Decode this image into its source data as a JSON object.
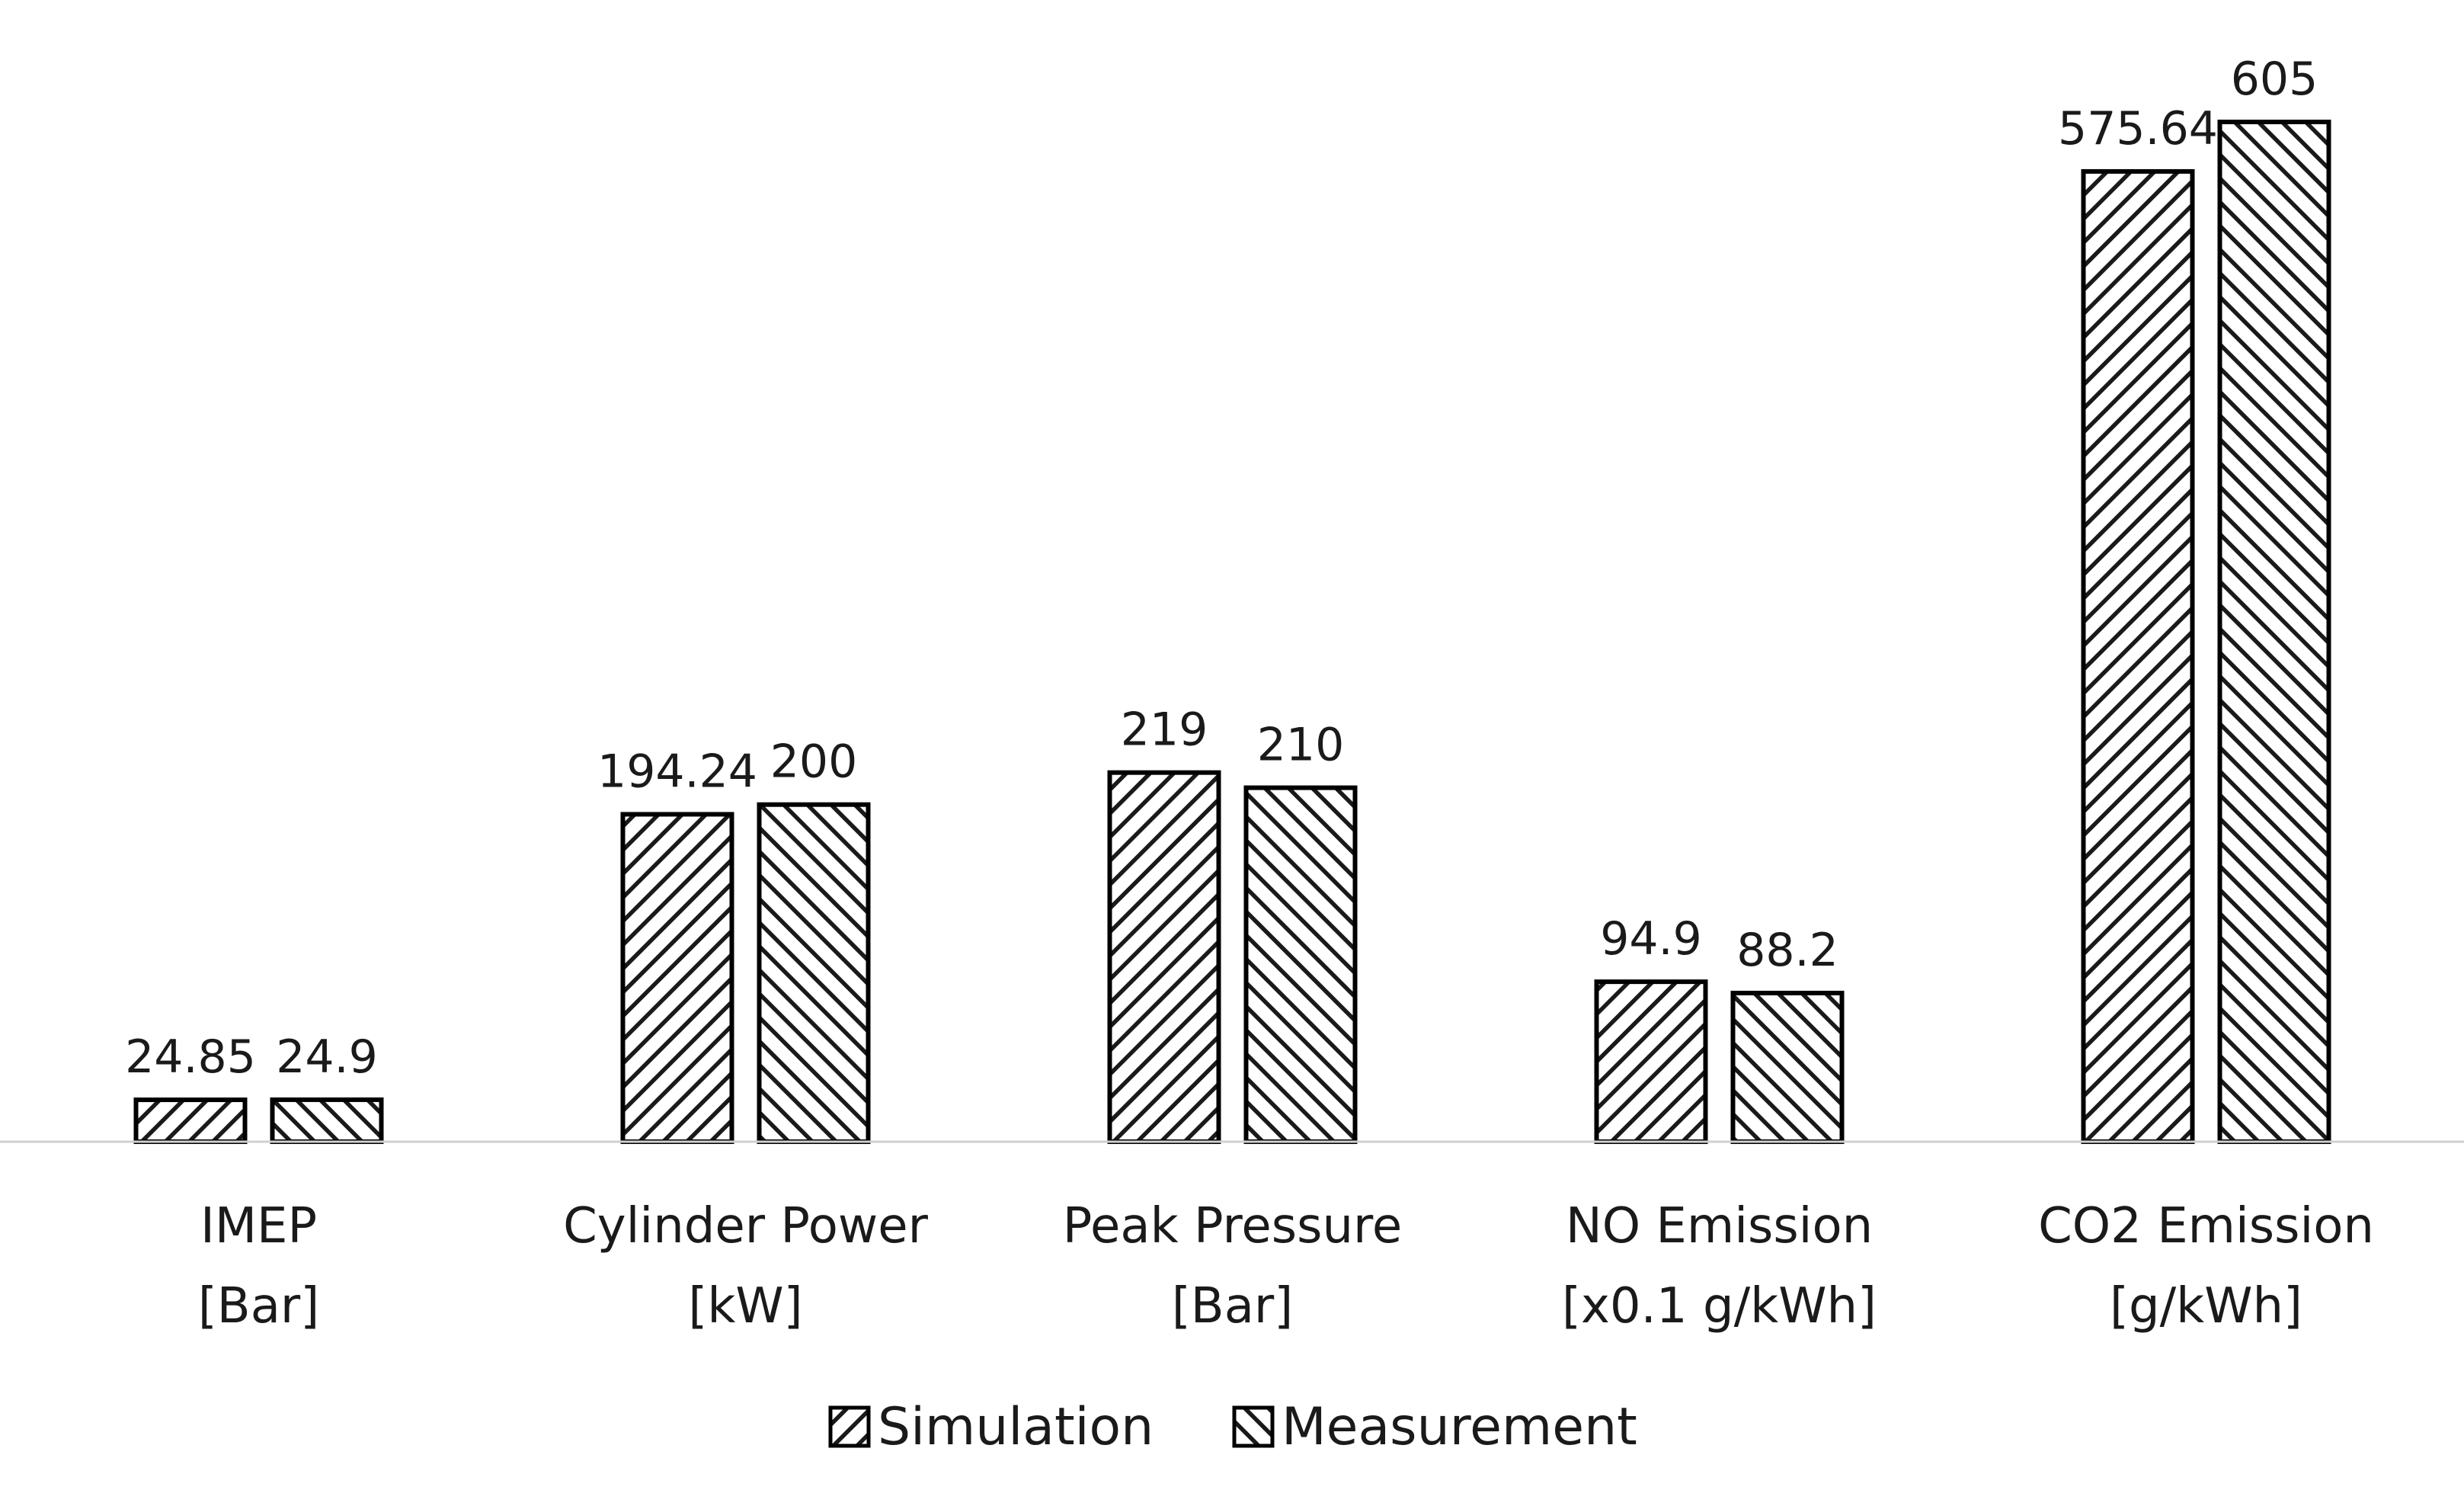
{
  "chart_data": {
    "type": "bar",
    "title": "",
    "xlabel": "",
    "ylabel": "",
    "categories": [
      {
        "line1": "IMEP",
        "line2": "[Bar]"
      },
      {
        "line1": "Cylinder Power",
        "line2": "[kW]"
      },
      {
        "line1": "Peak Pressure",
        "line2": "[Bar]"
      },
      {
        "line1": "NO Emission",
        "line2": "[x0.1 g/kWh]"
      },
      {
        "line1": "CO2 Emission",
        "line2": "[g/kWh]"
      }
    ],
    "series": [
      {
        "name": "Simulation",
        "pattern": "forward-diagonal",
        "values": [
          24.85,
          194.24,
          219,
          94.9,
          575.64
        ],
        "labels": [
          "24.85",
          "194.24",
          "219",
          "94.9",
          "575.64"
        ]
      },
      {
        "name": "Measurement",
        "pattern": "backward-diagonal",
        "values": [
          24.9,
          200,
          210,
          88.2,
          605
        ],
        "labels": [
          "24.9",
          "200",
          "210",
          "88.2",
          "605"
        ]
      }
    ],
    "ylim": [
      0,
      605
    ],
    "grid": false,
    "axis_visible": false,
    "legend_position": "bottom-center",
    "colors": {
      "bar_stroke": "#000000",
      "hatch": "#1a1a1a",
      "bar_fill": "#ffffff",
      "baseline": "#d0d0d0",
      "text": "#1a1a1a"
    }
  }
}
